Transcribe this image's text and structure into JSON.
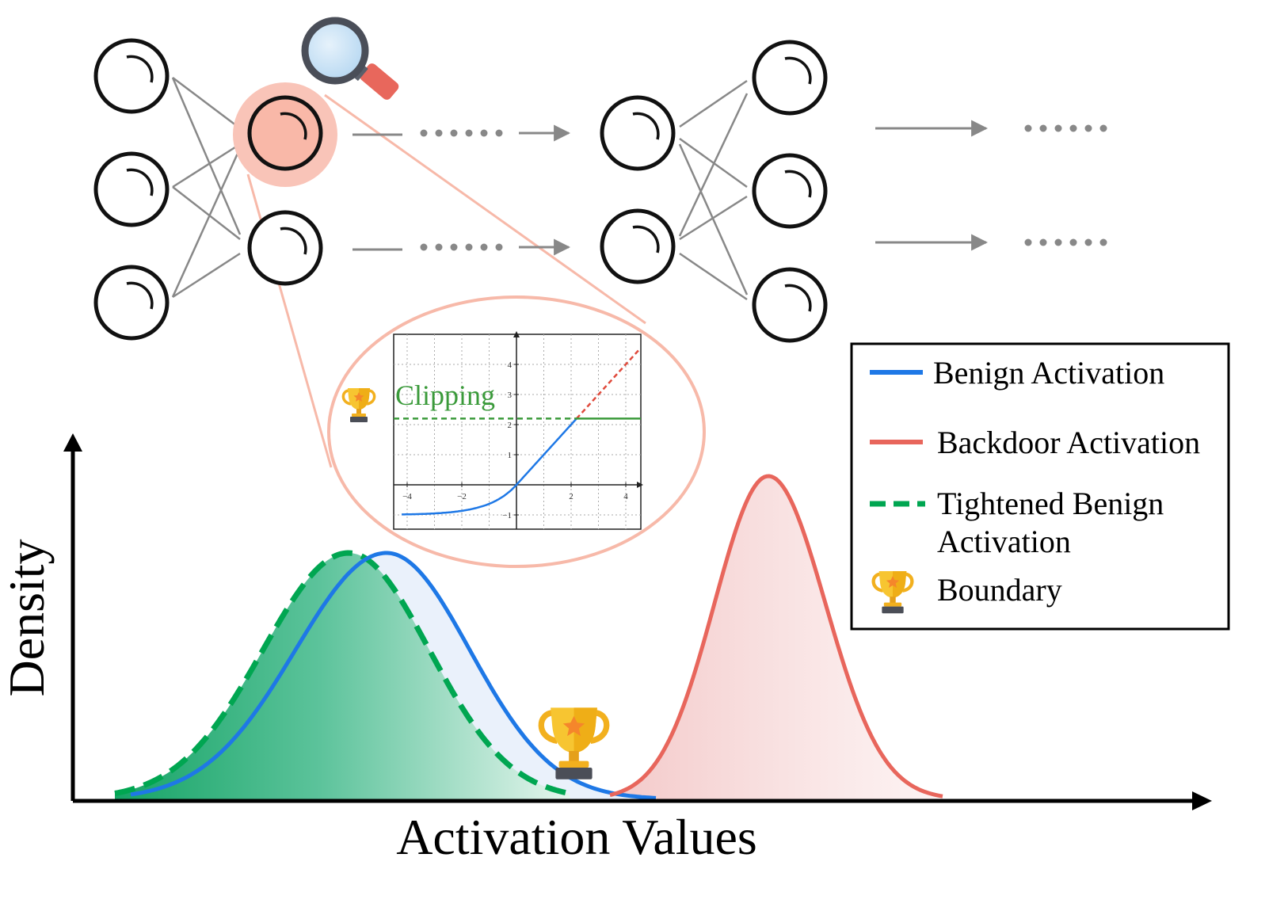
{
  "diagram": {
    "xlabel": "Activation Values",
    "ylabel": "Density",
    "inset": {
      "label": "Clipping",
      "x_ticks": [
        "−4",
        "−2",
        "2",
        "4"
      ],
      "y_ticks": [
        "4",
        "3",
        "2",
        "1",
        "−1"
      ]
    },
    "legend": {
      "items": [
        {
          "label": "Benign Activation",
          "color": "#1e78e6",
          "style": "solid"
        },
        {
          "label": "Backdoor Activation",
          "color": "#e8665c",
          "style": "solid"
        },
        {
          "label": "Tightened Benign",
          "label2": "Activation",
          "color": "#00a651",
          "style": "dashed"
        },
        {
          "label": "Boundary",
          "icon": "trophy-icon"
        }
      ]
    },
    "icons": [
      "magnifier-icon",
      "trophy-icon"
    ],
    "colors": {
      "highlight_neuron": "#f9c4b8",
      "connector": "#f7b9a9",
      "edges": "#888888",
      "benign": "#1e78e6",
      "backdoor": "#e8665c",
      "tightened": "#00a651",
      "clip_line": "#3a9a3a"
    }
  }
}
